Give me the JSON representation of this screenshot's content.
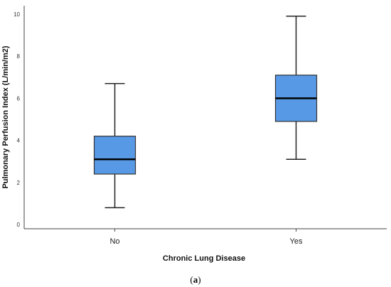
{
  "colors": {
    "box_fill": "#5899e6",
    "box_stroke": "#333333",
    "median": "#000000",
    "whisker": "#222222",
    "axis": "#444444"
  },
  "chart_data": {
    "type": "box",
    "xlabel": "Chronic Lung Disease",
    "ylabel": "Pulmonary Perfusion Index (L/min/m2)",
    "ylim": [
      -0.2,
      10.4
    ],
    "yticks": [
      "0",
      "2",
      "4",
      "6",
      "8",
      "10"
    ],
    "categories": [
      "No",
      "Yes"
    ],
    "boxes": [
      {
        "category": "No",
        "min": 0.8,
        "q1": 2.4,
        "median": 3.1,
        "q3": 4.2,
        "max": 6.7
      },
      {
        "category": "Yes",
        "min": 3.1,
        "q1": 4.9,
        "median": 6.0,
        "q3": 7.1,
        "max": 9.9
      }
    ],
    "grid": false,
    "legend": "none"
  },
  "caption": {
    "open": "(",
    "letter": "a",
    "close": ")"
  }
}
